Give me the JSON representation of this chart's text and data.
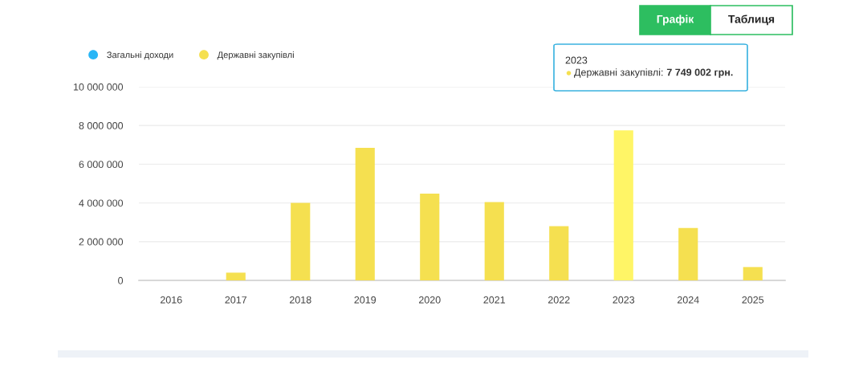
{
  "chart_data": {
    "type": "bar",
    "categories": [
      "2016",
      "2017",
      "2018",
      "2019",
      "2020",
      "2021",
      "2022",
      "2023",
      "2024",
      "2025"
    ],
    "series": [
      {
        "name": "Загальні доходи",
        "color": "#29b6f6",
        "values": [
          null,
          null,
          null,
          null,
          null,
          null,
          null,
          null,
          null,
          null
        ]
      },
      {
        "name": "Державні закупівлі",
        "color": "#f5e050",
        "colors": [
          "#f5e050",
          "#f5e050",
          "#f5e050",
          "#f5e050",
          "#f5e050",
          "#f5e050",
          "#f5e050",
          "#fff566",
          "#f5e050",
          "#f5e050"
        ],
        "values": [
          null,
          400000,
          4000000,
          6850000,
          4480000,
          4050000,
          2800000,
          7749002,
          2710000,
          690000
        ]
      }
    ],
    "ylim": [
      0,
      10000000
    ],
    "yticks": [
      {
        "value": 0,
        "label": "0"
      },
      {
        "value": 2000000,
        "label": "2 000 000"
      },
      {
        "value": 4000000,
        "label": "4 000 000"
      },
      {
        "value": 6000000,
        "label": "6 000 000"
      },
      {
        "value": 8000000,
        "label": "8 000 000"
      },
      {
        "value": 10000000,
        "label": "10 000 000"
      }
    ],
    "grid": "y",
    "legend": "top left",
    "annotations": [
      "2023\nДержавні закупівлі: 7 749 002 грн.",
      "Графік",
      "Таблиця"
    ]
  }
}
